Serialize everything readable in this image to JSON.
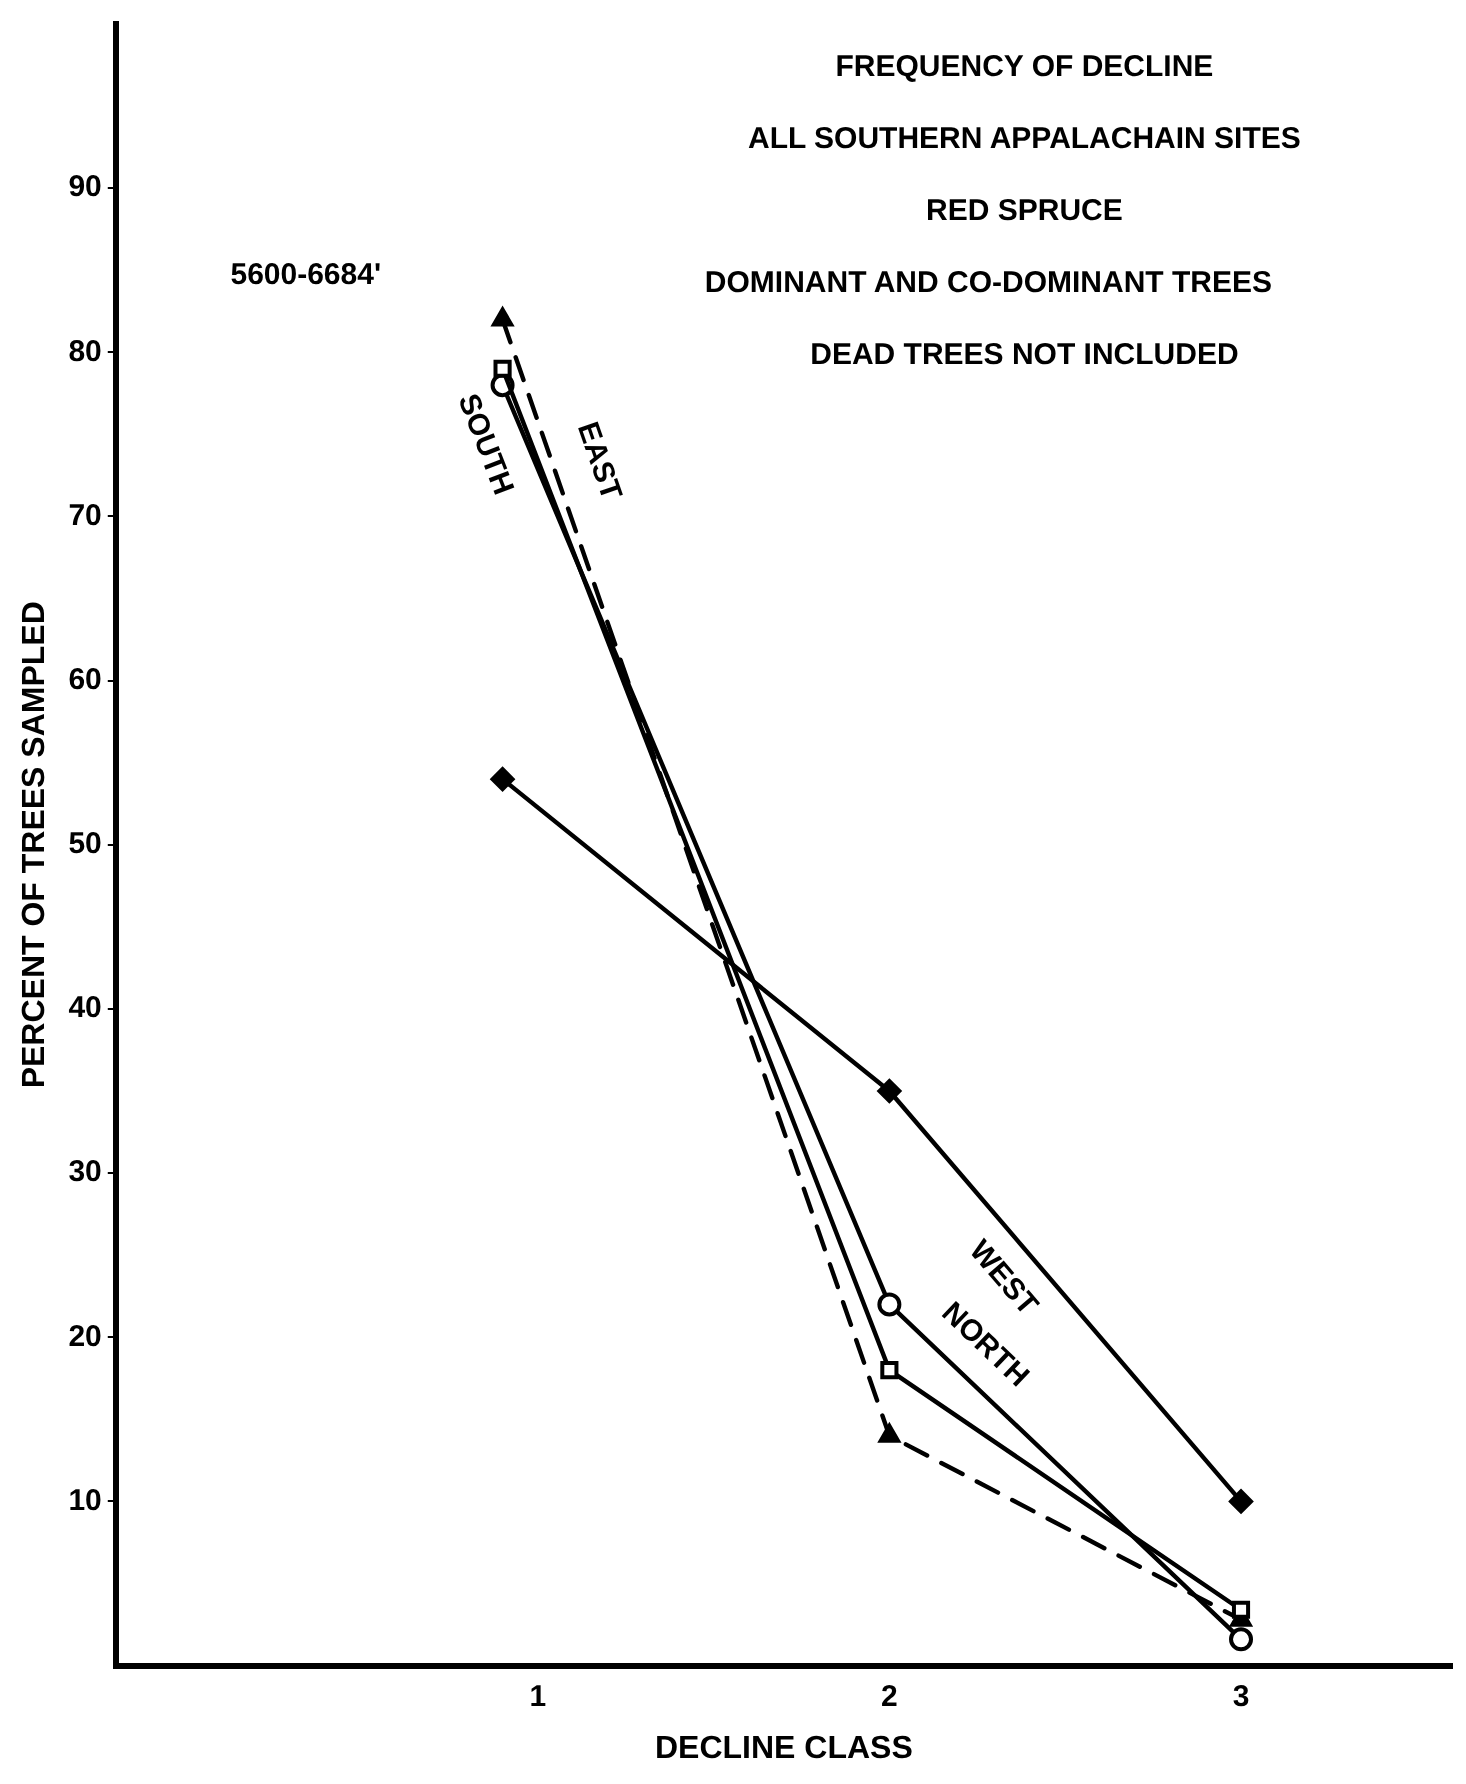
{
  "chart_data": {
    "type": "line",
    "title": "FREQUENCY OF DECLINE",
    "xlabel": "DECLINE CLASS",
    "ylabel": "PERCENT OF TREES SAMPLED",
    "annotations": [
      "ALL SOUTHERN APPALACHAIN SITES",
      "RED SPRUCE",
      "DOMINANT AND CO-DOMINANT TREES",
      "DEAD TREES NOT INCLUDED",
      "5600-6684'"
    ],
    "series": [
      {
        "name": "SOUTH",
        "color": "#000000",
        "x": [
          0.9,
          2,
          3
        ],
        "values": [
          79,
          18,
          3.4
        ],
        "marker": "square",
        "line_style": "solid"
      },
      {
        "name": "EAST",
        "color": "#000000",
        "x": [
          0.9,
          2,
          3
        ],
        "values": [
          82,
          14,
          2.8
        ],
        "marker": "triangle",
        "line_style": "dashed"
      },
      {
        "name": "NORTH",
        "color": "#000000",
        "x": [
          0.9,
          2,
          3
        ],
        "values": [
          78,
          22,
          1.6
        ],
        "marker": "circle",
        "line_style": "solid"
      },
      {
        "name": "WEST",
        "color": "#000000",
        "x": [
          0.9,
          2,
          3
        ],
        "values": [
          54,
          35,
          10
        ],
        "marker": "diamond",
        "line_style": "solid"
      }
    ],
    "xlim": [
      -0.2,
      3.6
    ],
    "xticks": [
      1,
      2,
      3
    ],
    "ylim": [
      0,
      100
    ],
    "yticks": [
      10,
      20,
      30,
      40,
      50,
      60,
      70,
      80,
      90
    ],
    "grid": false,
    "legend": false
  }
}
